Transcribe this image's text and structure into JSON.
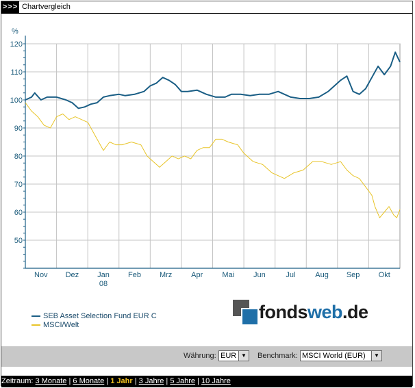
{
  "window": {
    "title": "Chartvergleich",
    "marker": ">>>"
  },
  "chart_data": {
    "type": "line",
    "ylabel": "%",
    "ylim": [
      40,
      120
    ],
    "yticks": [
      50,
      60,
      70,
      80,
      90,
      100,
      110,
      120
    ],
    "grid": true,
    "months": [
      {
        "label": "Nov",
        "sub": ""
      },
      {
        "label": "Dez",
        "sub": ""
      },
      {
        "label": "Jan",
        "sub": "08"
      },
      {
        "label": "Feb",
        "sub": ""
      },
      {
        "label": "Mrz",
        "sub": ""
      },
      {
        "label": "Apr",
        "sub": ""
      },
      {
        "label": "Mai",
        "sub": ""
      },
      {
        "label": "Jun",
        "sub": ""
      },
      {
        "label": "Jul",
        "sub": ""
      },
      {
        "label": "Aug",
        "sub": ""
      },
      {
        "label": "Sep",
        "sub": ""
      },
      {
        "label": "Okt",
        "sub": ""
      }
    ],
    "x_range_months": [
      0,
      12
    ],
    "series": [
      {
        "name": "SEB Asset Selection Fund EUR C",
        "color": "#1a5e85",
        "points": [
          [
            0,
            100
          ],
          [
            0.2,
            101
          ],
          [
            0.3,
            102.5
          ],
          [
            0.5,
            100
          ],
          [
            0.7,
            101
          ],
          [
            1.0,
            101
          ],
          [
            1.3,
            100
          ],
          [
            1.5,
            99
          ],
          [
            1.7,
            97
          ],
          [
            1.9,
            97.5
          ],
          [
            2.1,
            98.5
          ],
          [
            2.3,
            99
          ],
          [
            2.5,
            101
          ],
          [
            2.7,
            101.5
          ],
          [
            3.0,
            102
          ],
          [
            3.2,
            101.5
          ],
          [
            3.5,
            102
          ],
          [
            3.8,
            103
          ],
          [
            4.0,
            105
          ],
          [
            4.2,
            106
          ],
          [
            4.4,
            108
          ],
          [
            4.6,
            107
          ],
          [
            4.8,
            105.5
          ],
          [
            5.0,
            103
          ],
          [
            5.2,
            103
          ],
          [
            5.5,
            103.5
          ],
          [
            5.8,
            102
          ],
          [
            6.1,
            101
          ],
          [
            6.4,
            101
          ],
          [
            6.6,
            102
          ],
          [
            6.9,
            102
          ],
          [
            7.2,
            101.5
          ],
          [
            7.5,
            102
          ],
          [
            7.8,
            102
          ],
          [
            8.1,
            103
          ],
          [
            8.3,
            102
          ],
          [
            8.5,
            101
          ],
          [
            8.8,
            100.5
          ],
          [
            9.1,
            100.5
          ],
          [
            9.4,
            101
          ],
          [
            9.7,
            103
          ],
          [
            9.9,
            105
          ],
          [
            10.1,
            107
          ],
          [
            10.3,
            108.5
          ],
          [
            10.5,
            103
          ],
          [
            10.7,
            102
          ],
          [
            10.9,
            104
          ],
          [
            11.1,
            108
          ],
          [
            11.3,
            112
          ],
          [
            11.5,
            109
          ],
          [
            11.7,
            112
          ],
          [
            11.85,
            117
          ],
          [
            12.0,
            113.5
          ]
        ]
      },
      {
        "name": "MSCI/Welt",
        "color": "#e8c428",
        "points": [
          [
            0,
            99
          ],
          [
            0.2,
            96
          ],
          [
            0.4,
            94
          ],
          [
            0.6,
            91
          ],
          [
            0.8,
            90
          ],
          [
            1.0,
            94
          ],
          [
            1.2,
            95
          ],
          [
            1.4,
            93
          ],
          [
            1.6,
            94
          ],
          [
            1.8,
            93
          ],
          [
            2.0,
            92
          ],
          [
            2.2,
            88
          ],
          [
            2.4,
            84
          ],
          [
            2.5,
            82
          ],
          [
            2.7,
            85
          ],
          [
            2.9,
            84
          ],
          [
            3.1,
            84
          ],
          [
            3.4,
            85
          ],
          [
            3.7,
            84
          ],
          [
            3.9,
            80
          ],
          [
            4.1,
            78
          ],
          [
            4.3,
            76
          ],
          [
            4.5,
            78
          ],
          [
            4.7,
            80
          ],
          [
            4.9,
            79
          ],
          [
            5.1,
            80
          ],
          [
            5.3,
            79
          ],
          [
            5.5,
            82
          ],
          [
            5.7,
            83
          ],
          [
            5.9,
            83
          ],
          [
            6.1,
            86
          ],
          [
            6.3,
            86
          ],
          [
            6.5,
            85
          ],
          [
            6.8,
            84
          ],
          [
            7.0,
            81
          ],
          [
            7.3,
            78
          ],
          [
            7.6,
            77
          ],
          [
            7.9,
            74
          ],
          [
            8.1,
            73
          ],
          [
            8.3,
            72
          ],
          [
            8.6,
            74
          ],
          [
            8.9,
            75
          ],
          [
            9.2,
            78
          ],
          [
            9.5,
            78
          ],
          [
            9.8,
            77
          ],
          [
            10.1,
            78
          ],
          [
            10.3,
            75
          ],
          [
            10.5,
            73
          ],
          [
            10.7,
            72
          ],
          [
            10.9,
            69
          ],
          [
            11.1,
            66
          ],
          [
            11.2,
            62
          ],
          [
            11.35,
            58
          ],
          [
            11.5,
            60
          ],
          [
            11.65,
            62
          ],
          [
            11.8,
            59
          ],
          [
            11.9,
            58
          ],
          [
            12.0,
            61
          ]
        ]
      }
    ]
  },
  "logo": {
    "part1": "fonds",
    "part2": "web",
    "part3": ".de"
  },
  "controls": {
    "currency_label": "Währung:",
    "currency_value": "EUR",
    "benchmark_label": "Benchmark:",
    "benchmark_value": "MSCI World (EUR)"
  },
  "footer": {
    "label": "Zeitraum:",
    "options": [
      {
        "label": "3 Monate",
        "active": false
      },
      {
        "label": "6 Monate",
        "active": false
      },
      {
        "label": "1 Jahr",
        "active": true
      },
      {
        "label": "3 Jahre",
        "active": false
      },
      {
        "label": "5 Jahre",
        "active": false
      },
      {
        "label": "10 Jahre",
        "active": false
      }
    ]
  }
}
